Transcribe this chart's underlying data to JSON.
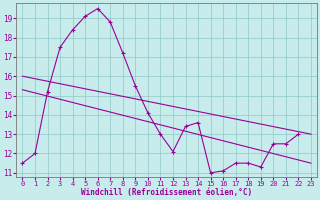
{
  "xlabel": "Windchill (Refroidissement éolien,°C)",
  "background_color": "#c8ecec",
  "line_color": "#990099",
  "xlim": [
    -0.5,
    23.5
  ],
  "ylim": [
    10.8,
    19.8
  ],
  "yticks": [
    11,
    12,
    13,
    14,
    15,
    16,
    17,
    18,
    19
  ],
  "xticks": [
    0,
    1,
    2,
    3,
    4,
    5,
    6,
    7,
    8,
    9,
    10,
    11,
    12,
    13,
    14,
    15,
    16,
    17,
    18,
    19,
    20,
    21,
    22,
    23
  ],
  "main_series_x": [
    0,
    1,
    2,
    3,
    4,
    5,
    6,
    7,
    8,
    9,
    10,
    11,
    12,
    13,
    14,
    15,
    16,
    17,
    18,
    19,
    20,
    21,
    22
  ],
  "main_series_y": [
    11.5,
    12.0,
    15.2,
    17.5,
    18.4,
    19.1,
    19.5,
    18.8,
    17.2,
    15.5,
    14.1,
    13.0,
    12.1,
    13.4,
    13.6,
    11.0,
    11.1,
    11.5,
    11.5,
    11.3,
    12.5,
    12.5,
    13.0
  ],
  "regression_line1": [
    [
      0,
      16.0
    ],
    [
      23,
      13.0
    ]
  ],
  "regression_line2": [
    [
      0,
      15.3
    ],
    [
      23,
      11.5
    ]
  ]
}
